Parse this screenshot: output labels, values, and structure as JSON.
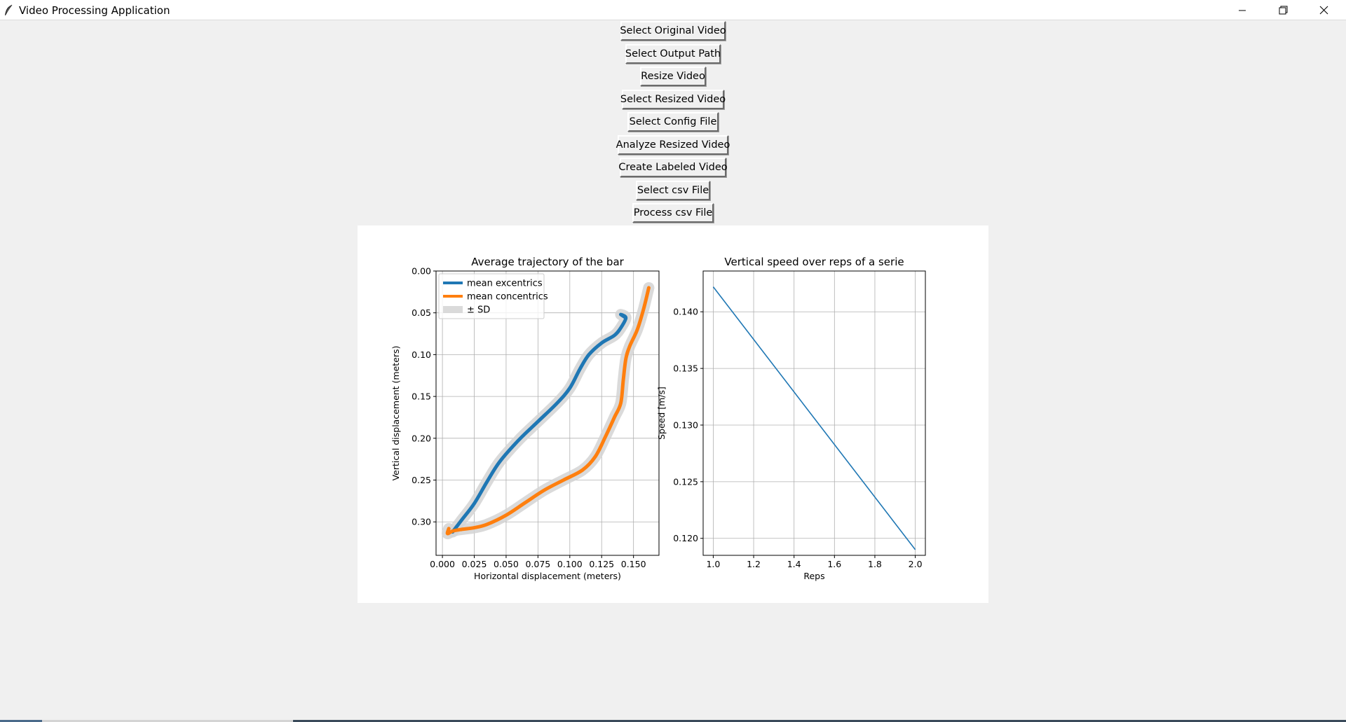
{
  "window": {
    "title": "Video Processing Application",
    "icon": "feather-icon"
  },
  "buttons": [
    {
      "label": "Select Original Video"
    },
    {
      "label": "Select Output Path"
    },
    {
      "label": "Resize Video"
    },
    {
      "label": "Select Resized Video"
    },
    {
      "label": "Select Config File"
    },
    {
      "label": "Analyze Resized Video"
    },
    {
      "label": "Create Labeled Video"
    },
    {
      "label": "Select csv File"
    },
    {
      "label": "Process csv File"
    }
  ],
  "colors": {
    "excentrics": "#1f77b4",
    "concentrics": "#ff7f0e",
    "sd_band": "#d3d3d3",
    "line": "#1f77b4"
  },
  "chart_data": [
    {
      "type": "line",
      "title": "Average trajectory of the bar",
      "xlabel": "Horizontal displacement (meters)",
      "ylabel": "Vertical displacement (meters)",
      "xlim": [
        -0.005,
        0.17
      ],
      "ylim": [
        0.0,
        0.34
      ],
      "y_inverted": true,
      "grid": true,
      "xticks": [
        "0.000",
        "0.025",
        "0.050",
        "0.075",
        "0.100",
        "0.125",
        "0.150"
      ],
      "yticks": [
        "0.00",
        "0.05",
        "0.10",
        "0.15",
        "0.20",
        "0.25",
        "0.30"
      ],
      "legend": {
        "placement": "top-left",
        "entries": [
          "mean excentrics",
          "mean concentrics",
          "± SD"
        ]
      },
      "series": [
        {
          "name": "mean excentrics",
          "x": [
            0.143,
            0.14,
            0.144,
            0.14,
            0.135,
            0.125,
            0.115,
            0.108,
            0.1,
            0.09,
            0.075,
            0.06,
            0.045,
            0.035,
            0.025,
            0.015,
            0.008
          ],
          "y": [
            0.055,
            0.052,
            0.056,
            0.068,
            0.077,
            0.086,
            0.1,
            0.117,
            0.14,
            0.158,
            0.18,
            0.202,
            0.228,
            0.252,
            0.278,
            0.298,
            0.312
          ]
        },
        {
          "name": "mean concentrics",
          "x": [
            0.005,
            0.004,
            0.008,
            0.015,
            0.025,
            0.035,
            0.05,
            0.065,
            0.08,
            0.095,
            0.11,
            0.12,
            0.128,
            0.135,
            0.14,
            0.142,
            0.144,
            0.147,
            0.153,
            0.158,
            0.162
          ],
          "y": [
            0.308,
            0.314,
            0.311,
            0.309,
            0.307,
            0.303,
            0.292,
            0.277,
            0.262,
            0.25,
            0.238,
            0.222,
            0.198,
            0.175,
            0.158,
            0.13,
            0.105,
            0.09,
            0.07,
            0.045,
            0.02
          ]
        }
      ]
    },
    {
      "type": "line",
      "title": "Vertical speed over reps of a serie",
      "xlabel": "Reps",
      "ylabel": "Speed [m/s]",
      "xlim": [
        0.95,
        2.05
      ],
      "ylim": [
        0.1185,
        0.1436
      ],
      "grid": true,
      "xticks": [
        "1.0",
        "1.2",
        "1.4",
        "1.6",
        "1.8",
        "2.0"
      ],
      "yticks": [
        "0.120",
        "0.125",
        "0.130",
        "0.135",
        "0.140"
      ],
      "series": [
        {
          "x": [
            1.0,
            2.0
          ],
          "y": [
            0.1422,
            0.119
          ]
        }
      ]
    }
  ]
}
